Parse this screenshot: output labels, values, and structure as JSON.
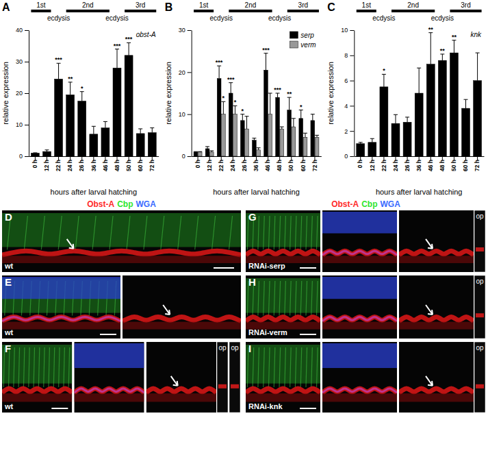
{
  "chart_data": [
    {
      "type": "bar",
      "panel": "A",
      "title": "obst-A",
      "ylabel": "relative expression",
      "xlabel": "hours after larval hatching",
      "categories": [
        "0 h",
        "12 h",
        "22 h",
        "24 h",
        "26 h",
        "36 h",
        "46 h",
        "48 h",
        "50 h",
        "60 h",
        "72 h"
      ],
      "values": [
        1,
        1.5,
        24.5,
        19.5,
        17.5,
        7,
        9,
        28,
        32,
        7.2,
        7.5
      ],
      "errors": [
        0.1,
        0.5,
        5,
        4,
        3,
        2.5,
        2,
        6,
        4,
        1.5,
        1.5
      ],
      "significance": [
        null,
        null,
        "***",
        "**",
        "*",
        null,
        null,
        "***",
        "***",
        null,
        null
      ],
      "color": "#000000",
      "ylim": [
        0,
        40
      ],
      "yticks": [
        0,
        10,
        20,
        30,
        40
      ],
      "stages": [
        {
          "label": "1st",
          "start": 0,
          "end": 1
        },
        {
          "label": "2nd",
          "start": 3,
          "end": 6
        },
        {
          "label": "3rd",
          "start": 8,
          "end": 10
        }
      ],
      "events": [
        {
          "label": "ecdysis",
          "at": 2
        },
        {
          "label": "ecdysis",
          "at": 7
        }
      ]
    },
    {
      "type": "bar",
      "panel": "B",
      "ylabel": "relative expression",
      "xlabel": "hours after larval hatching",
      "categories": [
        "0 h",
        "12 h",
        "22 h",
        "24 h",
        "26 h",
        "36 h",
        "46 h",
        "48 h",
        "50 h",
        "60 h",
        "72 h"
      ],
      "series": [
        {
          "name": "serp",
          "color": "#000000",
          "values": [
            1,
            1.8,
            18.5,
            15,
            8.5,
            3.8,
            20.5,
            14,
            11,
            9,
            8.5
          ],
          "errors": [
            0.1,
            0.5,
            3,
            2.5,
            1.5,
            0.5,
            4,
            1,
            3,
            2,
            1.5
          ],
          "significance": [
            null,
            null,
            "***",
            "***",
            "*",
            null,
            "***",
            "***",
            "**",
            "*",
            null
          ]
        },
        {
          "name": "verm",
          "color": "#999999",
          "values": [
            1,
            1,
            10,
            10,
            6.5,
            1.5,
            10,
            6.5,
            7,
            4.5,
            4.5
          ],
          "errors": [
            0.1,
            0.3,
            3,
            2,
            3,
            0.5,
            5,
            0.5,
            2,
            1,
            0.5
          ],
          "significance": [
            null,
            null,
            "*",
            "*",
            null,
            null,
            null,
            null,
            null,
            null,
            null
          ]
        }
      ],
      "legend": "top-right",
      "ylim": [
        0,
        30
      ],
      "yticks": [
        0,
        10,
        20,
        30
      ],
      "stages": [
        {
          "label": "1st",
          "start": 0,
          "end": 1
        },
        {
          "label": "2nd",
          "start": 3,
          "end": 6
        },
        {
          "label": "3rd",
          "start": 8,
          "end": 10
        }
      ],
      "events": [
        {
          "label": "ecdysis",
          "at": 2
        },
        {
          "label": "ecdysis",
          "at": 7
        }
      ]
    },
    {
      "type": "bar",
      "panel": "C",
      "title": "knk",
      "ylabel": "relative expression",
      "xlabel": "hours after larval hatching",
      "categories": [
        "0 h",
        "12 h",
        "22 h",
        "24 h",
        "26 h",
        "36 h",
        "46 h",
        "48 h",
        "50 h",
        "60 h",
        "72 h"
      ],
      "values": [
        1,
        1.1,
        5.5,
        2.6,
        2.7,
        5,
        7.3,
        7.6,
        8.2,
        3.8,
        6
      ],
      "errors": [
        0.1,
        0.3,
        1,
        0.7,
        0.4,
        2,
        2.5,
        0.5,
        1,
        0.7,
        2.2
      ],
      "significance": [
        null,
        null,
        "*",
        null,
        null,
        null,
        "**",
        "**",
        "**",
        null,
        null
      ],
      "color": "#000000",
      "ylim": [
        0,
        10
      ],
      "yticks": [
        0,
        2,
        4,
        6,
        8,
        10
      ],
      "stages": [
        {
          "label": "1st",
          "start": 0,
          "end": 1
        },
        {
          "label": "2nd",
          "start": 3,
          "end": 6
        },
        {
          "label": "3rd",
          "start": 8,
          "end": 10
        }
      ],
      "events": [
        {
          "label": "ecdysis",
          "at": 2
        },
        {
          "label": "ecdysis",
          "at": 7
        }
      ]
    }
  ],
  "image_header": {
    "texts": [
      "Obst-A",
      "Cbp",
      "WGA"
    ],
    "colors": [
      "#ff2a2a",
      "#2ee62e",
      "#3a6bff"
    ]
  },
  "image_panels": [
    {
      "panel": "D",
      "label": "wt"
    },
    {
      "panel": "E",
      "label": "wt"
    },
    {
      "panel": "F",
      "label": "wt",
      "insets": [
        "op",
        "op"
      ]
    },
    {
      "panel": "G",
      "label": "RNAi-serp",
      "insets": [
        "op"
      ]
    },
    {
      "panel": "H",
      "label": "RNAi-verm",
      "insets": [
        "op"
      ]
    },
    {
      "panel": "I",
      "label": "RNAi-knk",
      "insets": [
        "op"
      ]
    }
  ]
}
